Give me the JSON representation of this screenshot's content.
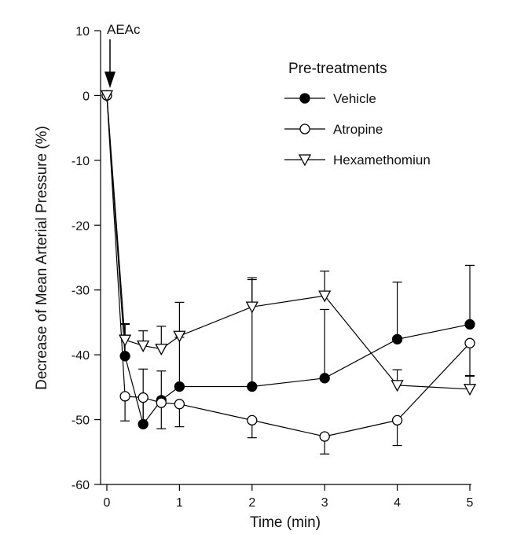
{
  "chart_data": {
    "type": "line",
    "title": "",
    "xlabel": "Time (min)",
    "ylabel": "Decrease of Mean Arterial Pressure (%)",
    "xlim": [
      0,
      5
    ],
    "ylim": [
      -60,
      10
    ],
    "x_ticks": [
      0,
      1,
      2,
      3,
      4,
      5
    ],
    "y_ticks": [
      10,
      0,
      -10,
      -20,
      -30,
      -40,
      -50,
      -60
    ],
    "grid": false,
    "legend": {
      "title": "Pre-treatments",
      "placement": "top-right"
    },
    "annotation": {
      "text": "AEAc",
      "x": 0
    },
    "series": [
      {
        "name": "Vehicle",
        "marker": "filled-circle",
        "x": [
          0,
          0.25,
          0.5,
          0.75,
          1,
          2,
          3,
          4,
          5
        ],
        "y": [
          0,
          -40.2,
          -50.7,
          -47.0,
          -44.9,
          -44.9,
          -43.6,
          -37.6,
          -35.3
        ],
        "err": [
          0,
          5.0,
          8.5,
          4.5,
          7.6,
          16.8,
          10.6,
          8.8,
          9.1
        ]
      },
      {
        "name": "Atropine",
        "marker": "open-circle",
        "x": [
          0,
          0.25,
          0.5,
          0.75,
          1,
          2,
          3,
          4,
          5
        ],
        "y": [
          0,
          -46.4,
          -46.6,
          -47.4,
          -47.6,
          -50.1,
          -52.6,
          -50.1,
          -38.2
        ],
        "err": [
          0,
          3.8,
          4.1,
          4.0,
          3.5,
          2.7,
          2.7,
          3.9,
          5.1
        ]
      },
      {
        "name": "Hexamethomiun",
        "marker": "open-triangle-down",
        "x": [
          0,
          0.25,
          0.5,
          0.75,
          1,
          2,
          3,
          4,
          5
        ],
        "y": [
          0,
          -37.7,
          -38.6,
          -39.1,
          -37.1,
          -32.6,
          -30.9,
          -44.7,
          -45.3
        ],
        "err": [
          0,
          2.4,
          2.3,
          3.5,
          5.2,
          4.2,
          3.8,
          2.4,
          2.1
        ]
      }
    ]
  }
}
